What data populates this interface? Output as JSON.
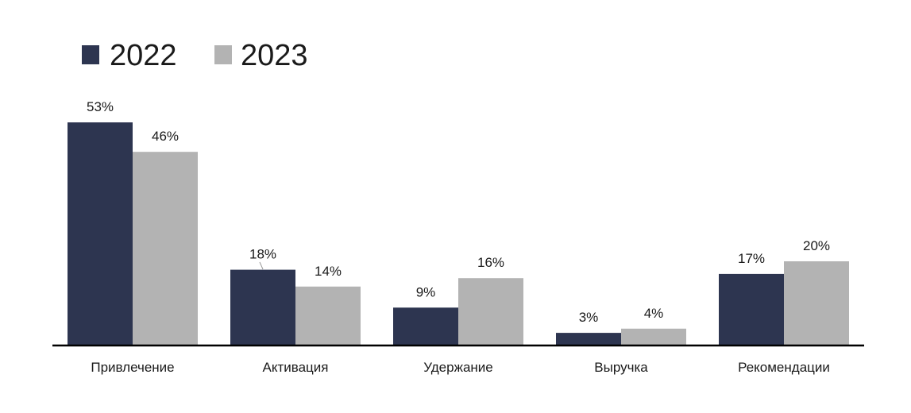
{
  "chart_data": {
    "type": "bar",
    "title": "",
    "xlabel": "",
    "ylabel": "",
    "ylim": [
      0,
      60
    ],
    "grid": false,
    "legend_position": "top-left",
    "categories": [
      "Привлечение",
      "Активация",
      "Удержание",
      "Выручка",
      "Рекомендации"
    ],
    "series": [
      {
        "name": "2022",
        "color": "#2d3550",
        "values": [
          53,
          18,
          9,
          3,
          17
        ],
        "labels": [
          "53%",
          "18%",
          "9%",
          "3%",
          "17%"
        ]
      },
      {
        "name": "2023",
        "color": "#b3b3b3",
        "values": [
          46,
          14,
          16,
          4,
          20
        ],
        "labels": [
          "46%",
          "14%",
          "16%",
          "4%",
          "20%"
        ]
      }
    ]
  }
}
